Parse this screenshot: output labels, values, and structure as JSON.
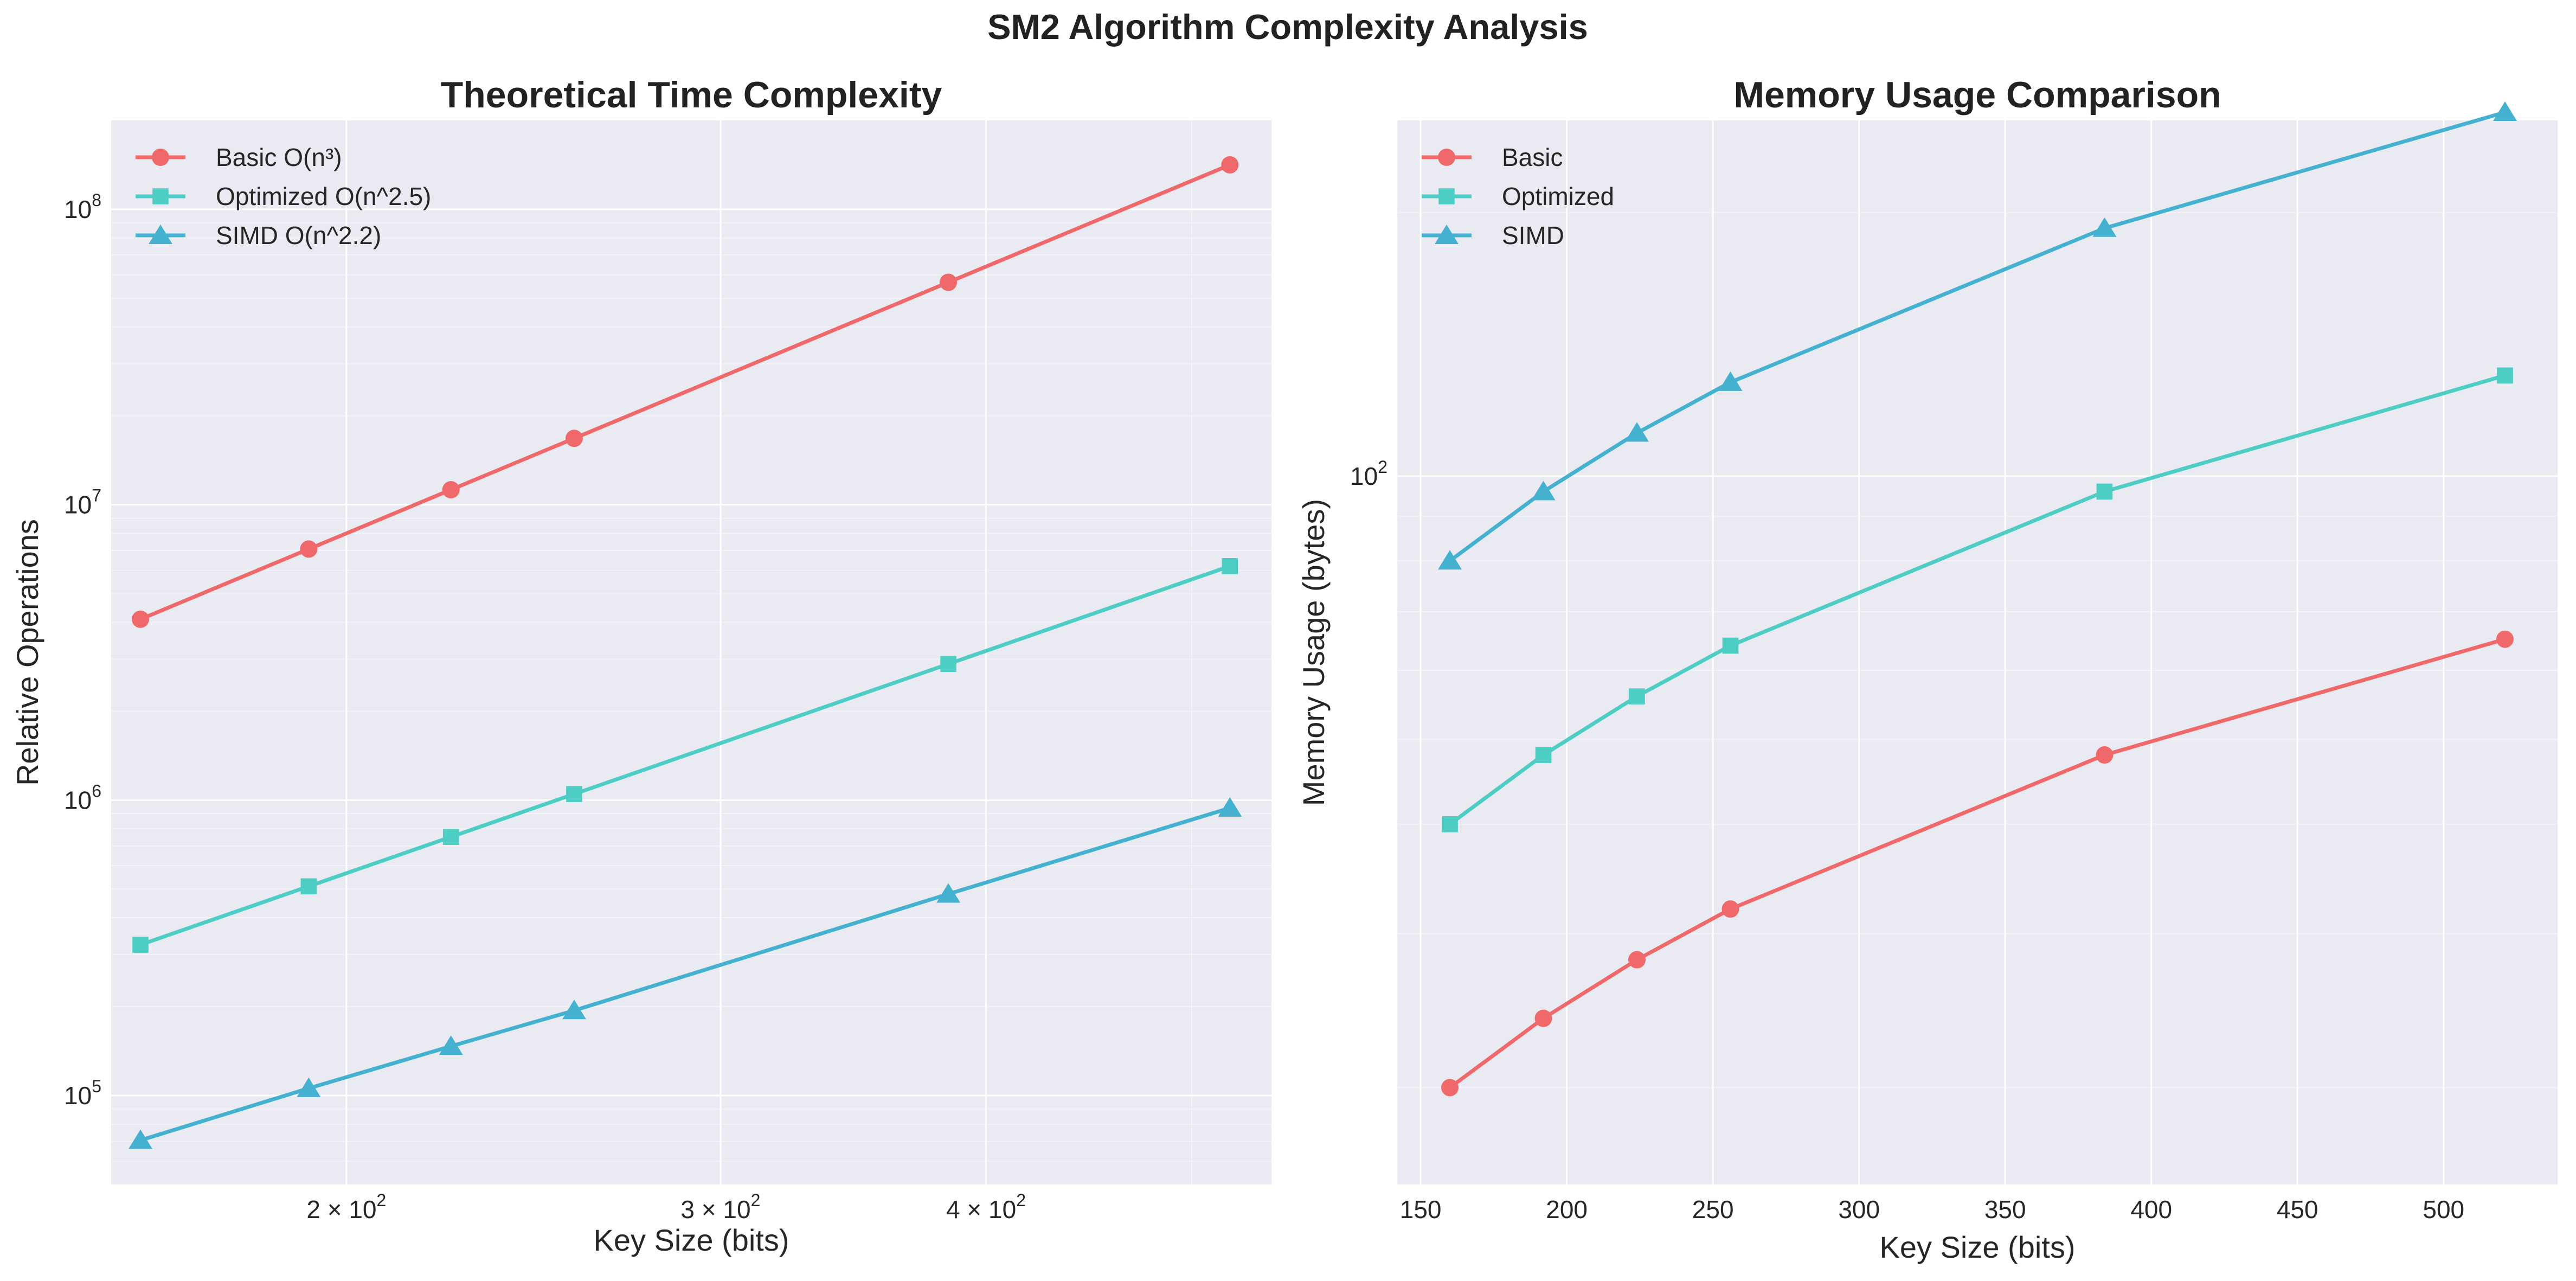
{
  "figure": {
    "suptitle": "SM2 Algorithm Complexity Analysis"
  },
  "colors": {
    "basic": "#f0696a",
    "optimized": "#4ecdc4",
    "simd": "#45b1d1",
    "plot_bg": "#eaeaf2",
    "grid": "#ffffff"
  },
  "chart_data": [
    {
      "type": "line",
      "title": "Theoretical Time Complexity",
      "xlabel": "Key Size (bits)",
      "ylabel": "Relative Operations",
      "xscale": "log",
      "yscale": "log",
      "xlim": [
        155,
        545
      ],
      "ylim": [
        50000,
        200000000
      ],
      "grid": true,
      "legend": "top-left",
      "xticks": [
        {
          "value": 200,
          "base": "2 × 10",
          "exp": "2"
        },
        {
          "value": 300,
          "base": "3 × 10",
          "exp": "2"
        },
        {
          "value": 400,
          "base": "4 × 10",
          "exp": "2"
        }
      ],
      "yticks": [
        {
          "value": 100000,
          "base": "10",
          "exp": "5"
        },
        {
          "value": 1000000,
          "base": "10",
          "exp": "6"
        },
        {
          "value": 10000000,
          "base": "10",
          "exp": "7"
        },
        {
          "value": 100000000,
          "base": "10",
          "exp": "8"
        }
      ],
      "x": [
        160,
        192,
        224,
        256,
        384,
        521
      ],
      "series": [
        {
          "name": "Basic O(n³)",
          "color_key": "basic",
          "marker": "circle",
          "values": [
            4096000,
            7077888,
            11239424,
            16777216,
            56623104,
            141420761
          ]
        },
        {
          "name": "Optimized O(n^2.5)",
          "color_key": "optimized",
          "marker": "square",
          "values": [
            323817,
            510774,
            750736,
            1048576,
            2889750,
            6195987
          ]
        },
        {
          "name": "SIMD O(n^2.2)",
          "color_key": "simd",
          "marker": "triangle",
          "values": [
            70569,
            105786,
            146876,
            194012,
            481045,
            940300
          ]
        }
      ]
    },
    {
      "type": "line",
      "title": "Memory Usage Comparison",
      "xlabel": "Key Size (bits)",
      "ylabel": "Memory Usage (bytes)",
      "xscale": "linear",
      "yscale": "log",
      "xlim": [
        142,
        539
      ],
      "ylim": [
        15.5,
        255
      ],
      "grid": true,
      "legend": "top-left",
      "xticks": [
        {
          "value": 150,
          "label": "150"
        },
        {
          "value": 200,
          "label": "200"
        },
        {
          "value": 250,
          "label": "250"
        },
        {
          "value": 300,
          "label": "300"
        },
        {
          "value": 350,
          "label": "350"
        },
        {
          "value": 400,
          "label": "400"
        },
        {
          "value": 450,
          "label": "450"
        },
        {
          "value": 500,
          "label": "500"
        }
      ],
      "yticks": [
        {
          "value": 100,
          "base": "10",
          "exp": "2"
        }
      ],
      "x": [
        160,
        192,
        224,
        256,
        384,
        521
      ],
      "series": [
        {
          "name": "Basic",
          "color_key": "basic",
          "marker": "circle",
          "values": [
            20,
            24,
            28,
            32,
            48,
            65.1
          ]
        },
        {
          "name": "Optimized",
          "color_key": "optimized",
          "marker": "square",
          "values": [
            40,
            48,
            56,
            64,
            96,
            130.3
          ]
        },
        {
          "name": "SIMD",
          "color_key": "simd",
          "marker": "triangle",
          "values": [
            80,
            96,
            112,
            128,
            192,
            260.5
          ]
        }
      ]
    }
  ]
}
